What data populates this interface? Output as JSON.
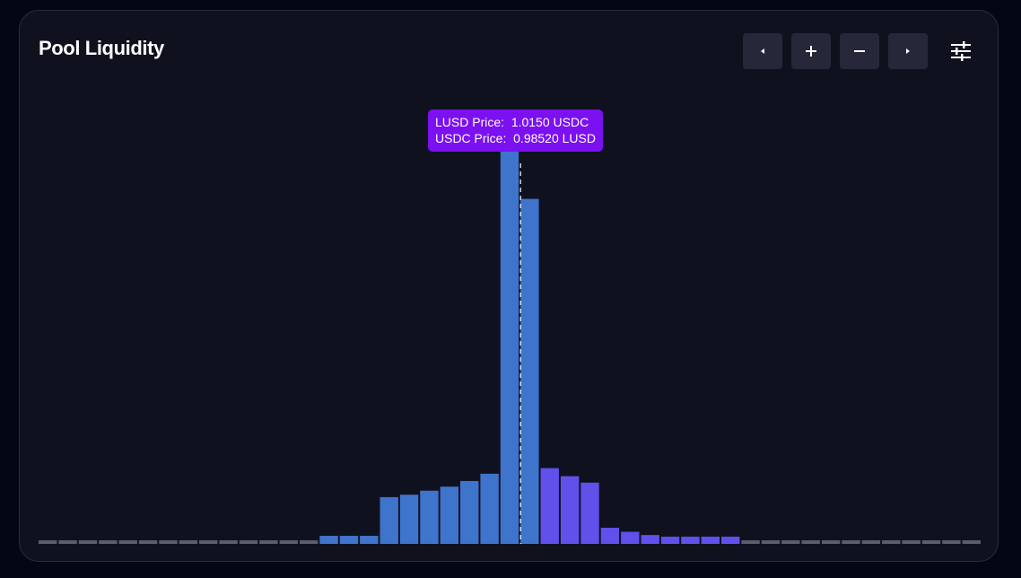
{
  "header": {
    "title": "Pool Liquidity"
  },
  "controls": {
    "pan_left_icon": "triangle-left-icon",
    "zoom_in_icon": "plus-icon",
    "zoom_out_icon": "minus-icon",
    "pan_right_icon": "triangle-right-icon",
    "settings_icon": "sliders-icon"
  },
  "tooltip": {
    "line1_label": "LUSD Price:",
    "line1_value": "1.0150 USDC",
    "line2_label": "USDC Price:",
    "line2_value": "0.98520 LUSD"
  },
  "colors": {
    "background": "#10111f",
    "lower_range": "#3f74cc",
    "upper_range": "#6150ea",
    "empty": "#5a5d6c",
    "tooltip": "#7b10f0",
    "button": "#262839"
  },
  "chart_data": {
    "type": "bar",
    "series": [
      {
        "values": [
          0.3,
          0.3,
          0.3,
          0.3,
          0.3,
          0.3,
          0.3,
          0.3,
          0.3,
          0.3,
          0.3,
          0.3,
          0.3,
          0.3,
          1.0,
          1.0,
          1.0,
          5.8,
          6.1,
          6.6,
          7.1,
          7.8,
          8.7,
          49.7,
          42.8,
          9.4,
          8.4,
          7.6,
          2.0,
          1.5,
          1.1,
          0.9,
          0.9,
          0.9,
          0.9,
          0.3,
          0.3,
          0.3,
          0.3,
          0.3,
          0.3,
          0.3,
          0.3,
          0.3,
          0.3,
          0.3,
          0.3
        ],
        "ranges": [
          "empty",
          "empty",
          "empty",
          "empty",
          "empty",
          "empty",
          "empty",
          "empty",
          "empty",
          "empty",
          "empty",
          "empty",
          "empty",
          "empty",
          "lower",
          "lower",
          "lower",
          "lower",
          "lower",
          "lower",
          "lower",
          "lower",
          "lower",
          "lower",
          "lower",
          "upper",
          "upper",
          "upper",
          "upper",
          "upper",
          "upper",
          "upper",
          "upper",
          "upper",
          "upper",
          "empty",
          "empty",
          "empty",
          "empty",
          "empty",
          "empty",
          "empty",
          "empty",
          "empty",
          "empty",
          "empty",
          "empty"
        ]
      }
    ],
    "ylim": [
      0,
      55
    ],
    "current_price_index": 24,
    "current_price_offset": 0.5,
    "grid": false,
    "legend": "none"
  }
}
